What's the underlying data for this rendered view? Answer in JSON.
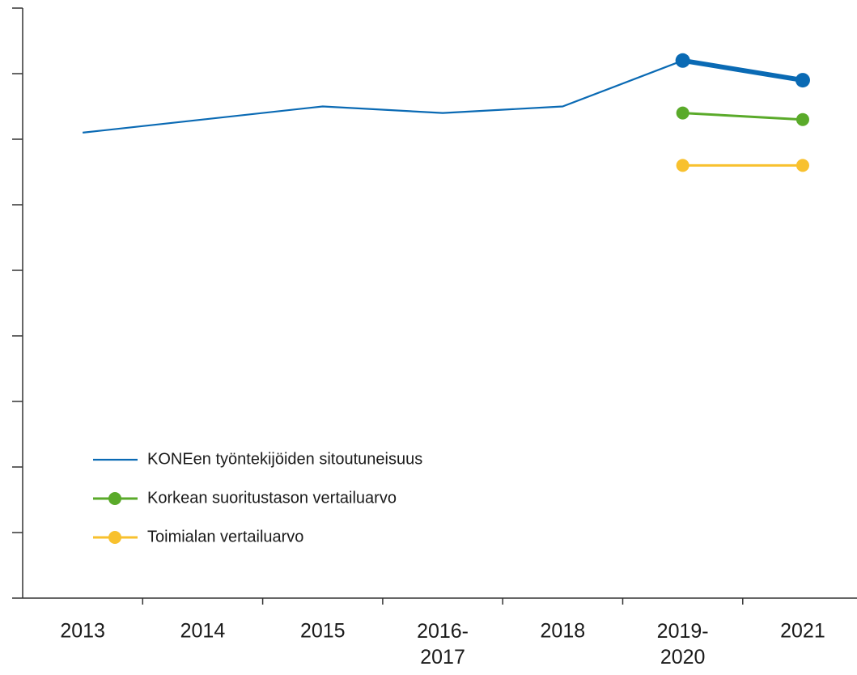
{
  "chart_data": {
    "type": "line",
    "categories": [
      "2013",
      "2014",
      "2015",
      "2016-2017",
      "2018",
      "2019-2020",
      "2021"
    ],
    "series": [
      {
        "name": "KONEen työntekijöiden sitoutuneisuus",
        "color": "#0a6ab4",
        "values": [
          71,
          73,
          75,
          74,
          75,
          82,
          79
        ]
      },
      {
        "name": "Korkean suoritustason vertailuarvo",
        "color": "#5aaa2a",
        "values": [
          null,
          null,
          null,
          null,
          null,
          74,
          73
        ]
      },
      {
        "name": "Toimialan vertailuarvo",
        "color": "#f8c12e",
        "values": [
          null,
          null,
          null,
          null,
          null,
          66,
          66
        ]
      }
    ],
    "ylim": [
      0,
      90
    ],
    "yticks": [
      0,
      10,
      20,
      30,
      40,
      50,
      60,
      70,
      80,
      90
    ]
  }
}
